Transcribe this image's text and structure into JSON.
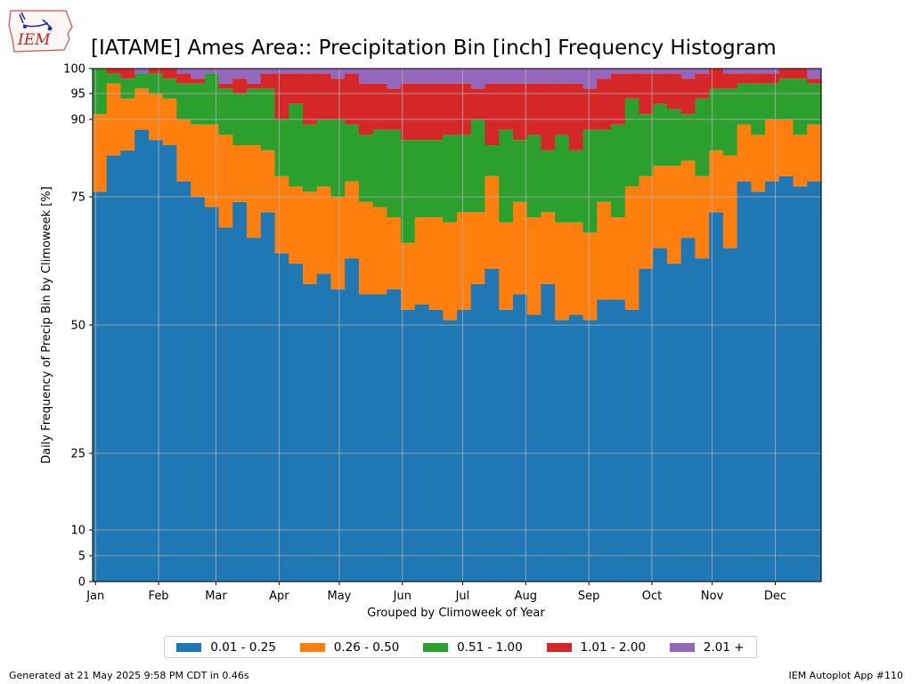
{
  "logo": {
    "text": "IEM"
  },
  "footer": {
    "generated": "Generated at 21 May 2025 9:58 PM CDT in 0.46s",
    "app": "IEM Autoplot App #110"
  },
  "colors": {
    "bins": [
      "#1f77b4",
      "#ff7f0e",
      "#2ca02c",
      "#d62728",
      "#9467bd"
    ]
  },
  "chart_data": {
    "type": "area",
    "title": "[IATAME] Ames Area:: Precipitation Bin [inch] Frequency Histogram",
    "xlabel": "Grouped by Climoweek of Year",
    "ylabel": "Daily Frequency of Precip Bin by Climoweek [%]",
    "ylim": [
      0,
      100
    ],
    "y_ticks": [
      0,
      5,
      10,
      25,
      50,
      75,
      90,
      95,
      100
    ],
    "month_labels": [
      "Jan",
      "Feb",
      "Mar",
      "Apr",
      "May",
      "Jun",
      "Jul",
      "Aug",
      "Sep",
      "Oct",
      "Nov",
      "Dec"
    ],
    "month_positions": [
      0.5,
      11.5,
      21.5,
      32.5,
      43,
      54,
      64.5,
      75.5,
      86.5,
      97.5,
      108,
      119
    ],
    "xlim": [
      0,
      127
    ],
    "grid": true,
    "legend_position": "bottom-center",
    "series_names": [
      "0.01 - 0.25",
      "0.26 - 0.50",
      "0.51 - 1.00",
      "1.01 - 2.00",
      "2.01 +"
    ],
    "cumulative_top_percent": [
      [
        76,
        83,
        84,
        88,
        86,
        85,
        78,
        75,
        73,
        69,
        74,
        67,
        72,
        64,
        62,
        58,
        60,
        57,
        63,
        56,
        56,
        57,
        53,
        54,
        53,
        51,
        53,
        58,
        61,
        53,
        56,
        52,
        58,
        51,
        52,
        51,
        55,
        55,
        53,
        61,
        65,
        62,
        67,
        63,
        72,
        65,
        78,
        76,
        78,
        79,
        77,
        78
      ],
      [
        91,
        97,
        94,
        96,
        95,
        94,
        90,
        89,
        89,
        87,
        85,
        85,
        84,
        79,
        77,
        76,
        77,
        75,
        78,
        74,
        73,
        71,
        66,
        71,
        71,
        70,
        72,
        72,
        79,
        70,
        74,
        71,
        72,
        70,
        70,
        68,
        74,
        71,
        77,
        79,
        81,
        81,
        82,
        79,
        84,
        83,
        89,
        87,
        90,
        90,
        87,
        89
      ],
      [
        100,
        99,
        98,
        99,
        99,
        98,
        97,
        97,
        99,
        96,
        95,
        96,
        96,
        90,
        93,
        89,
        90,
        90,
        89,
        87,
        88,
        88,
        86,
        86,
        86,
        87,
        87,
        90,
        85,
        88,
        86,
        87,
        84,
        87,
        84,
        88,
        88,
        89,
        94,
        91,
        93,
        92,
        91,
        94,
        96,
        96,
        97,
        97,
        97,
        98,
        98,
        97
      ],
      [
        100,
        100,
        100,
        99,
        100,
        100,
        99,
        98,
        99,
        97,
        98,
        97,
        99,
        99,
        99,
        99,
        99,
        98,
        99,
        97,
        97,
        96,
        97,
        97,
        97,
        97,
        97,
        96,
        97,
        97,
        97,
        97,
        97,
        97,
        97,
        96,
        98,
        99,
        99,
        99,
        99,
        99,
        98,
        99,
        100,
        99,
        99,
        99,
        99,
        100,
        100,
        98
      ],
      [
        100,
        100,
        100,
        100,
        100,
        100,
        100,
        100,
        100,
        100,
        100,
        100,
        100,
        100,
        100,
        100,
        100,
        100,
        100,
        100,
        100,
        100,
        100,
        100,
        100,
        100,
        100,
        100,
        100,
        100,
        100,
        100,
        100,
        100,
        100,
        100,
        100,
        100,
        100,
        100,
        100,
        100,
        100,
        100,
        100,
        100,
        100,
        100,
        100,
        100,
        100,
        100
      ]
    ]
  }
}
